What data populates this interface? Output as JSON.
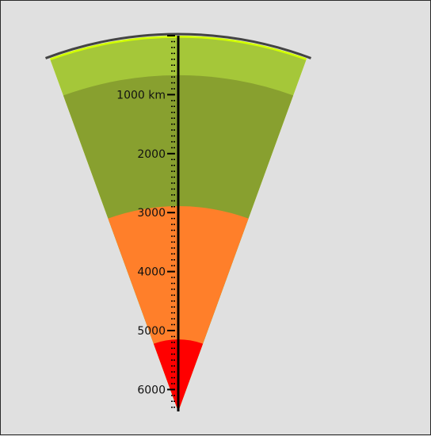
{
  "scale": {
    "unit": "km",
    "major_labels": [
      {
        "depth": 1000,
        "text": "1000 km"
      },
      {
        "depth": 2000,
        "text": "2000"
      },
      {
        "depth": 3000,
        "text": "3000"
      },
      {
        "depth": 4000,
        "text": "4000"
      },
      {
        "depth": 5000,
        "text": "5000"
      },
      {
        "depth": 6000,
        "text": "6000"
      }
    ],
    "minor_step": 100,
    "max_depth": 6371
  },
  "layers": [
    {
      "id": "crust",
      "top": 0,
      "bottom": 35,
      "color": "#d2ff00"
    },
    {
      "id": "upper-mantle",
      "top": 35,
      "bottom": 670,
      "color": "#a5c739"
    },
    {
      "id": "lower-mantle",
      "top": 670,
      "bottom": 2890,
      "color": "#88a02f"
    },
    {
      "id": "outer-core",
      "top": 2890,
      "bottom": 5150,
      "color": "#ff7f2a"
    },
    {
      "id": "inner-core",
      "top": 5150,
      "bottom": 6371,
      "color": "#ff0000"
    }
  ],
  "colors": {
    "background": "#e0e0e0",
    "surface_outline": "#444444",
    "axis": "#000000"
  }
}
